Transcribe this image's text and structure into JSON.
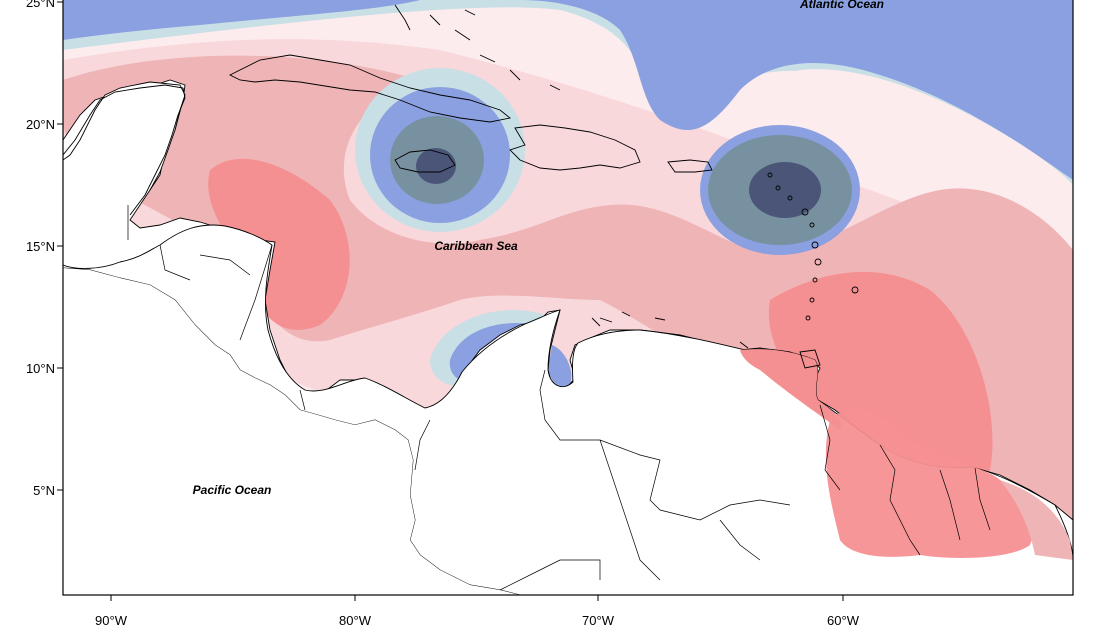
{
  "map": {
    "lat_ticks": [
      "25°N",
      "20°N",
      "15°N",
      "10°N",
      "5°N"
    ],
    "lon_ticks": [
      "90°W",
      "80°W",
      "70°W",
      "60°W"
    ],
    "labels": {
      "atlantic": "Atlantic Ocean",
      "caribbean": "Caribbean Sea",
      "pacific": "Pacific Ocean"
    },
    "palette": {
      "deep_blue": "#4a5578",
      "slate": "#7891a0",
      "blue": "#8aa0e0",
      "light_blue": "#c9dfe6",
      "pale": "#fdecee",
      "light_pink": "#f9d8dc",
      "pink": "#efb4b6",
      "red": "#f59092"
    }
  }
}
